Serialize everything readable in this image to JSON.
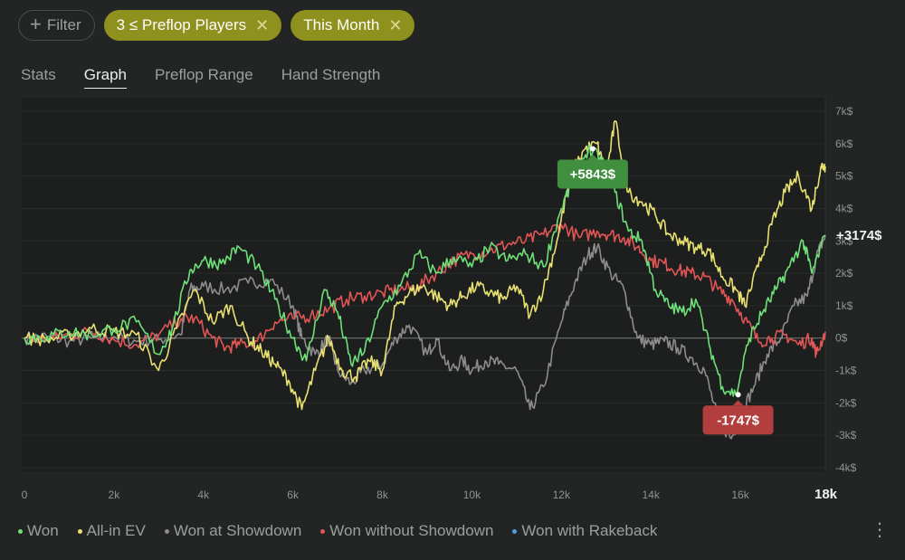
{
  "filters": {
    "add_label": "Filter",
    "chips": [
      {
        "label": "3 ≤ Preflop Players"
      },
      {
        "label": "This Month"
      }
    ]
  },
  "tabs": [
    {
      "label": "Stats",
      "active": false
    },
    {
      "label": "Graph",
      "active": true
    },
    {
      "label": "Preflop Range",
      "active": false
    },
    {
      "label": "Hand Strength",
      "active": false
    }
  ],
  "chart_data": {
    "type": "line",
    "xlim": [
      0,
      17900
    ],
    "ylim": [
      -4000,
      7000
    ],
    "x_ticks": [
      {
        "value": 0,
        "label": "0"
      },
      {
        "value": 2000,
        "label": "2k"
      },
      {
        "value": 4000,
        "label": "4k"
      },
      {
        "value": 6000,
        "label": "6k"
      },
      {
        "value": 8000,
        "label": "8k"
      },
      {
        "value": 10000,
        "label": "10k"
      },
      {
        "value": 12000,
        "label": "12k"
      },
      {
        "value": 14000,
        "label": "14k"
      },
      {
        "value": 16000,
        "label": "16k"
      },
      {
        "value": 17900,
        "label": "18k",
        "emphasis": true
      }
    ],
    "y_ticks": [
      {
        "value": 7000,
        "label": "7k$"
      },
      {
        "value": 6000,
        "label": "6k$"
      },
      {
        "value": 5000,
        "label": "5k$"
      },
      {
        "value": 4000,
        "label": "4k$"
      },
      {
        "value": 3000,
        "label": "3k$"
      },
      {
        "value": 2000,
        "label": "2k$"
      },
      {
        "value": 1000,
        "label": "1k$"
      },
      {
        "value": 0,
        "label": "0$"
      },
      {
        "value": -1000,
        "label": "-1k$"
      },
      {
        "value": -2000,
        "label": "-2k$"
      },
      {
        "value": -3000,
        "label": "-3k$"
      },
      {
        "value": -4000,
        "label": "-4k$"
      }
    ],
    "grid": true,
    "series": [
      {
        "name": "Won with Rakeback",
        "color": "#4aa3e8",
        "points": []
      },
      {
        "name": "Won at Showdown",
        "color": "#8c8c8c",
        "points": [
          [
            0,
            0
          ],
          [
            500,
            50
          ],
          [
            1000,
            -100
          ],
          [
            1500,
            0
          ],
          [
            2000,
            50
          ],
          [
            2500,
            -100
          ],
          [
            3000,
            -50
          ],
          [
            3500,
            100
          ],
          [
            3700,
            1500
          ],
          [
            4000,
            1600
          ],
          [
            4500,
            1500
          ],
          [
            5000,
            1700
          ],
          [
            5500,
            1800
          ],
          [
            6000,
            1000
          ],
          [
            6200,
            0
          ],
          [
            6500,
            -500
          ],
          [
            6800,
            0
          ],
          [
            7000,
            -1000
          ],
          [
            7300,
            -1400
          ],
          [
            7600,
            -1000
          ],
          [
            8000,
            -800
          ],
          [
            8300,
            0
          ],
          [
            8600,
            400
          ],
          [
            9000,
            -500
          ],
          [
            9200,
            0
          ],
          [
            9500,
            -1000
          ],
          [
            9800,
            -700
          ],
          [
            10000,
            -1000
          ],
          [
            10300,
            -700
          ],
          [
            10600,
            -800
          ],
          [
            11000,
            -1000
          ],
          [
            11300,
            -2200
          ],
          [
            11600,
            -1500
          ],
          [
            12000,
            500
          ],
          [
            12300,
            1700
          ],
          [
            12600,
            2600
          ],
          [
            12800,
            2800
          ],
          [
            13100,
            2000
          ],
          [
            13400,
            1500
          ],
          [
            13700,
            0
          ],
          [
            14000,
            -200
          ],
          [
            14300,
            -100
          ],
          [
            14600,
            -300
          ],
          [
            14900,
            -600
          ],
          [
            15200,
            -1000
          ],
          [
            15500,
            -2500
          ],
          [
            15800,
            -3100
          ],
          [
            16000,
            -2400
          ],
          [
            16300,
            -1500
          ],
          [
            16600,
            -500
          ],
          [
            16900,
            0
          ],
          [
            17200,
            1000
          ],
          [
            17500,
            1300
          ],
          [
            17700,
            2500
          ],
          [
            17900,
            3174
          ]
        ]
      },
      {
        "name": "Won without Showdown",
        "color": "#e05555",
        "points": [
          [
            0,
            0
          ],
          [
            500,
            -50
          ],
          [
            1000,
            100
          ],
          [
            1500,
            200
          ],
          [
            2000,
            -50
          ],
          [
            2500,
            -200
          ],
          [
            3000,
            100
          ],
          [
            3500,
            600
          ],
          [
            3800,
            600
          ],
          [
            4200,
            0
          ],
          [
            4500,
            -300
          ],
          [
            4800,
            -200
          ],
          [
            5200,
            -100
          ],
          [
            5600,
            500
          ],
          [
            6000,
            600
          ],
          [
            6400,
            700
          ],
          [
            6800,
            900
          ],
          [
            7200,
            1200
          ],
          [
            7600,
            1300
          ],
          [
            8000,
            1400
          ],
          [
            8400,
            1500
          ],
          [
            8800,
            1600
          ],
          [
            9200,
            2000
          ],
          [
            9600,
            2400
          ],
          [
            10000,
            2600
          ],
          [
            10400,
            2700
          ],
          [
            10800,
            2900
          ],
          [
            11200,
            3000
          ],
          [
            11600,
            3200
          ],
          [
            12000,
            3500
          ],
          [
            12400,
            3100
          ],
          [
            12800,
            3300
          ],
          [
            13100,
            3200
          ],
          [
            13400,
            3100
          ],
          [
            13700,
            2800
          ],
          [
            14000,
            2400
          ],
          [
            14300,
            2300
          ],
          [
            14600,
            2100
          ],
          [
            14900,
            2000
          ],
          [
            15200,
            1900
          ],
          [
            15500,
            1500
          ],
          [
            15800,
            1200
          ],
          [
            16100,
            600
          ],
          [
            16400,
            -100
          ],
          [
            16700,
            0
          ],
          [
            17000,
            100
          ],
          [
            17300,
            -200
          ],
          [
            17600,
            0
          ],
          [
            17700,
            -500
          ],
          [
            17900,
            200
          ]
        ]
      },
      {
        "name": "All-in EV",
        "color": "#e8e070",
        "points": [
          [
            0,
            0
          ],
          [
            500,
            -50
          ],
          [
            1000,
            100
          ],
          [
            1500,
            300
          ],
          [
            2000,
            200
          ],
          [
            2500,
            100
          ],
          [
            3000,
            -1000
          ],
          [
            3400,
            300
          ],
          [
            3800,
            1500
          ],
          [
            4200,
            500
          ],
          [
            4600,
            1000
          ],
          [
            5000,
            0
          ],
          [
            5300,
            -400
          ],
          [
            5600,
            -800
          ],
          [
            5900,
            -1300
          ],
          [
            6200,
            -2200
          ],
          [
            6500,
            -1000
          ],
          [
            6800,
            0
          ],
          [
            7100,
            -1000
          ],
          [
            7400,
            -1200
          ],
          [
            7700,
            -700
          ],
          [
            8000,
            -1000
          ],
          [
            8300,
            1000
          ],
          [
            8600,
            1400
          ],
          [
            8900,
            1600
          ],
          [
            9200,
            1300
          ],
          [
            9500,
            1000
          ],
          [
            9800,
            1300
          ],
          [
            10100,
            1600
          ],
          [
            10400,
            1400
          ],
          [
            10700,
            1200
          ],
          [
            11000,
            1600
          ],
          [
            11300,
            700
          ],
          [
            11600,
            1500
          ],
          [
            11900,
            3000
          ],
          [
            12200,
            5000
          ],
          [
            12500,
            5800
          ],
          [
            12800,
            6000
          ],
          [
            13000,
            5000
          ],
          [
            13200,
            6700
          ],
          [
            13500,
            4500
          ],
          [
            13800,
            4200
          ],
          [
            14100,
            3800
          ],
          [
            14400,
            3200
          ],
          [
            14700,
            3000
          ],
          [
            15000,
            2800
          ],
          [
            15300,
            2700
          ],
          [
            15600,
            1900
          ],
          [
            15900,
            1500
          ],
          [
            16100,
            1000
          ],
          [
            16400,
            2200
          ],
          [
            16700,
            3500
          ],
          [
            17000,
            4500
          ],
          [
            17300,
            5000
          ],
          [
            17600,
            4000
          ],
          [
            17800,
            5300
          ],
          [
            17900,
            5300
          ]
        ]
      },
      {
        "name": "Won",
        "color": "#6ee07a",
        "points": [
          [
            0,
            0
          ],
          [
            500,
            50
          ],
          [
            1000,
            200
          ],
          [
            1500,
            100
          ],
          [
            2000,
            300
          ],
          [
            2500,
            500
          ],
          [
            3000,
            -500
          ],
          [
            3300,
            300
          ],
          [
            3700,
            2100
          ],
          [
            4000,
            2400
          ],
          [
            4400,
            2300
          ],
          [
            4800,
            2800
          ],
          [
            5200,
            2200
          ],
          [
            5600,
            1200
          ],
          [
            6000,
            0
          ],
          [
            6300,
            -700
          ],
          [
            6700,
            1500
          ],
          [
            7000,
            800
          ],
          [
            7300,
            -800
          ],
          [
            7600,
            -400
          ],
          [
            8000,
            1000
          ],
          [
            8400,
            1600
          ],
          [
            8800,
            2600
          ],
          [
            9200,
            2000
          ],
          [
            9600,
            2500
          ],
          [
            10000,
            2200
          ],
          [
            10400,
            2800
          ],
          [
            10800,
            2400
          ],
          [
            11200,
            2600
          ],
          [
            11600,
            2200
          ],
          [
            12000,
            4000
          ],
          [
            12300,
            5000
          ],
          [
            12600,
            5843
          ],
          [
            12900,
            5500
          ],
          [
            13200,
            4500
          ],
          [
            13500,
            3300
          ],
          [
            13800,
            3000
          ],
          [
            14100,
            1500
          ],
          [
            14400,
            1000
          ],
          [
            14700,
            800
          ],
          [
            15000,
            1200
          ],
          [
            15300,
            -200
          ],
          [
            15600,
            -1500
          ],
          [
            15900,
            -1747
          ],
          [
            16200,
            0
          ],
          [
            16500,
            800
          ],
          [
            16800,
            1500
          ],
          [
            17100,
            2200
          ],
          [
            17400,
            3000
          ],
          [
            17600,
            2000
          ],
          [
            17900,
            3174
          ]
        ]
      }
    ],
    "annotations": [
      {
        "label": "+5843$",
        "x": 12700,
        "y": 5843,
        "color": "#3f8f3f",
        "placement": "below"
      },
      {
        "label": "-1747$",
        "x": 15950,
        "y": -1747,
        "color": "#b33e3e",
        "placement": "below"
      }
    ],
    "last_value_label": "+3174$",
    "legend_position": "bottom-left"
  },
  "legend": [
    {
      "name": "Won",
      "color": "#6ee07a"
    },
    {
      "name": "All-in EV",
      "color": "#e8e070"
    },
    {
      "name": "Won at Showdown",
      "color": "#8c8c8c"
    },
    {
      "name": "Won without Showdown",
      "color": "#e05555"
    },
    {
      "name": "Won with Rakeback",
      "color": "#4aa3e8"
    }
  ],
  "menu_icon": "more-vertical-icon"
}
